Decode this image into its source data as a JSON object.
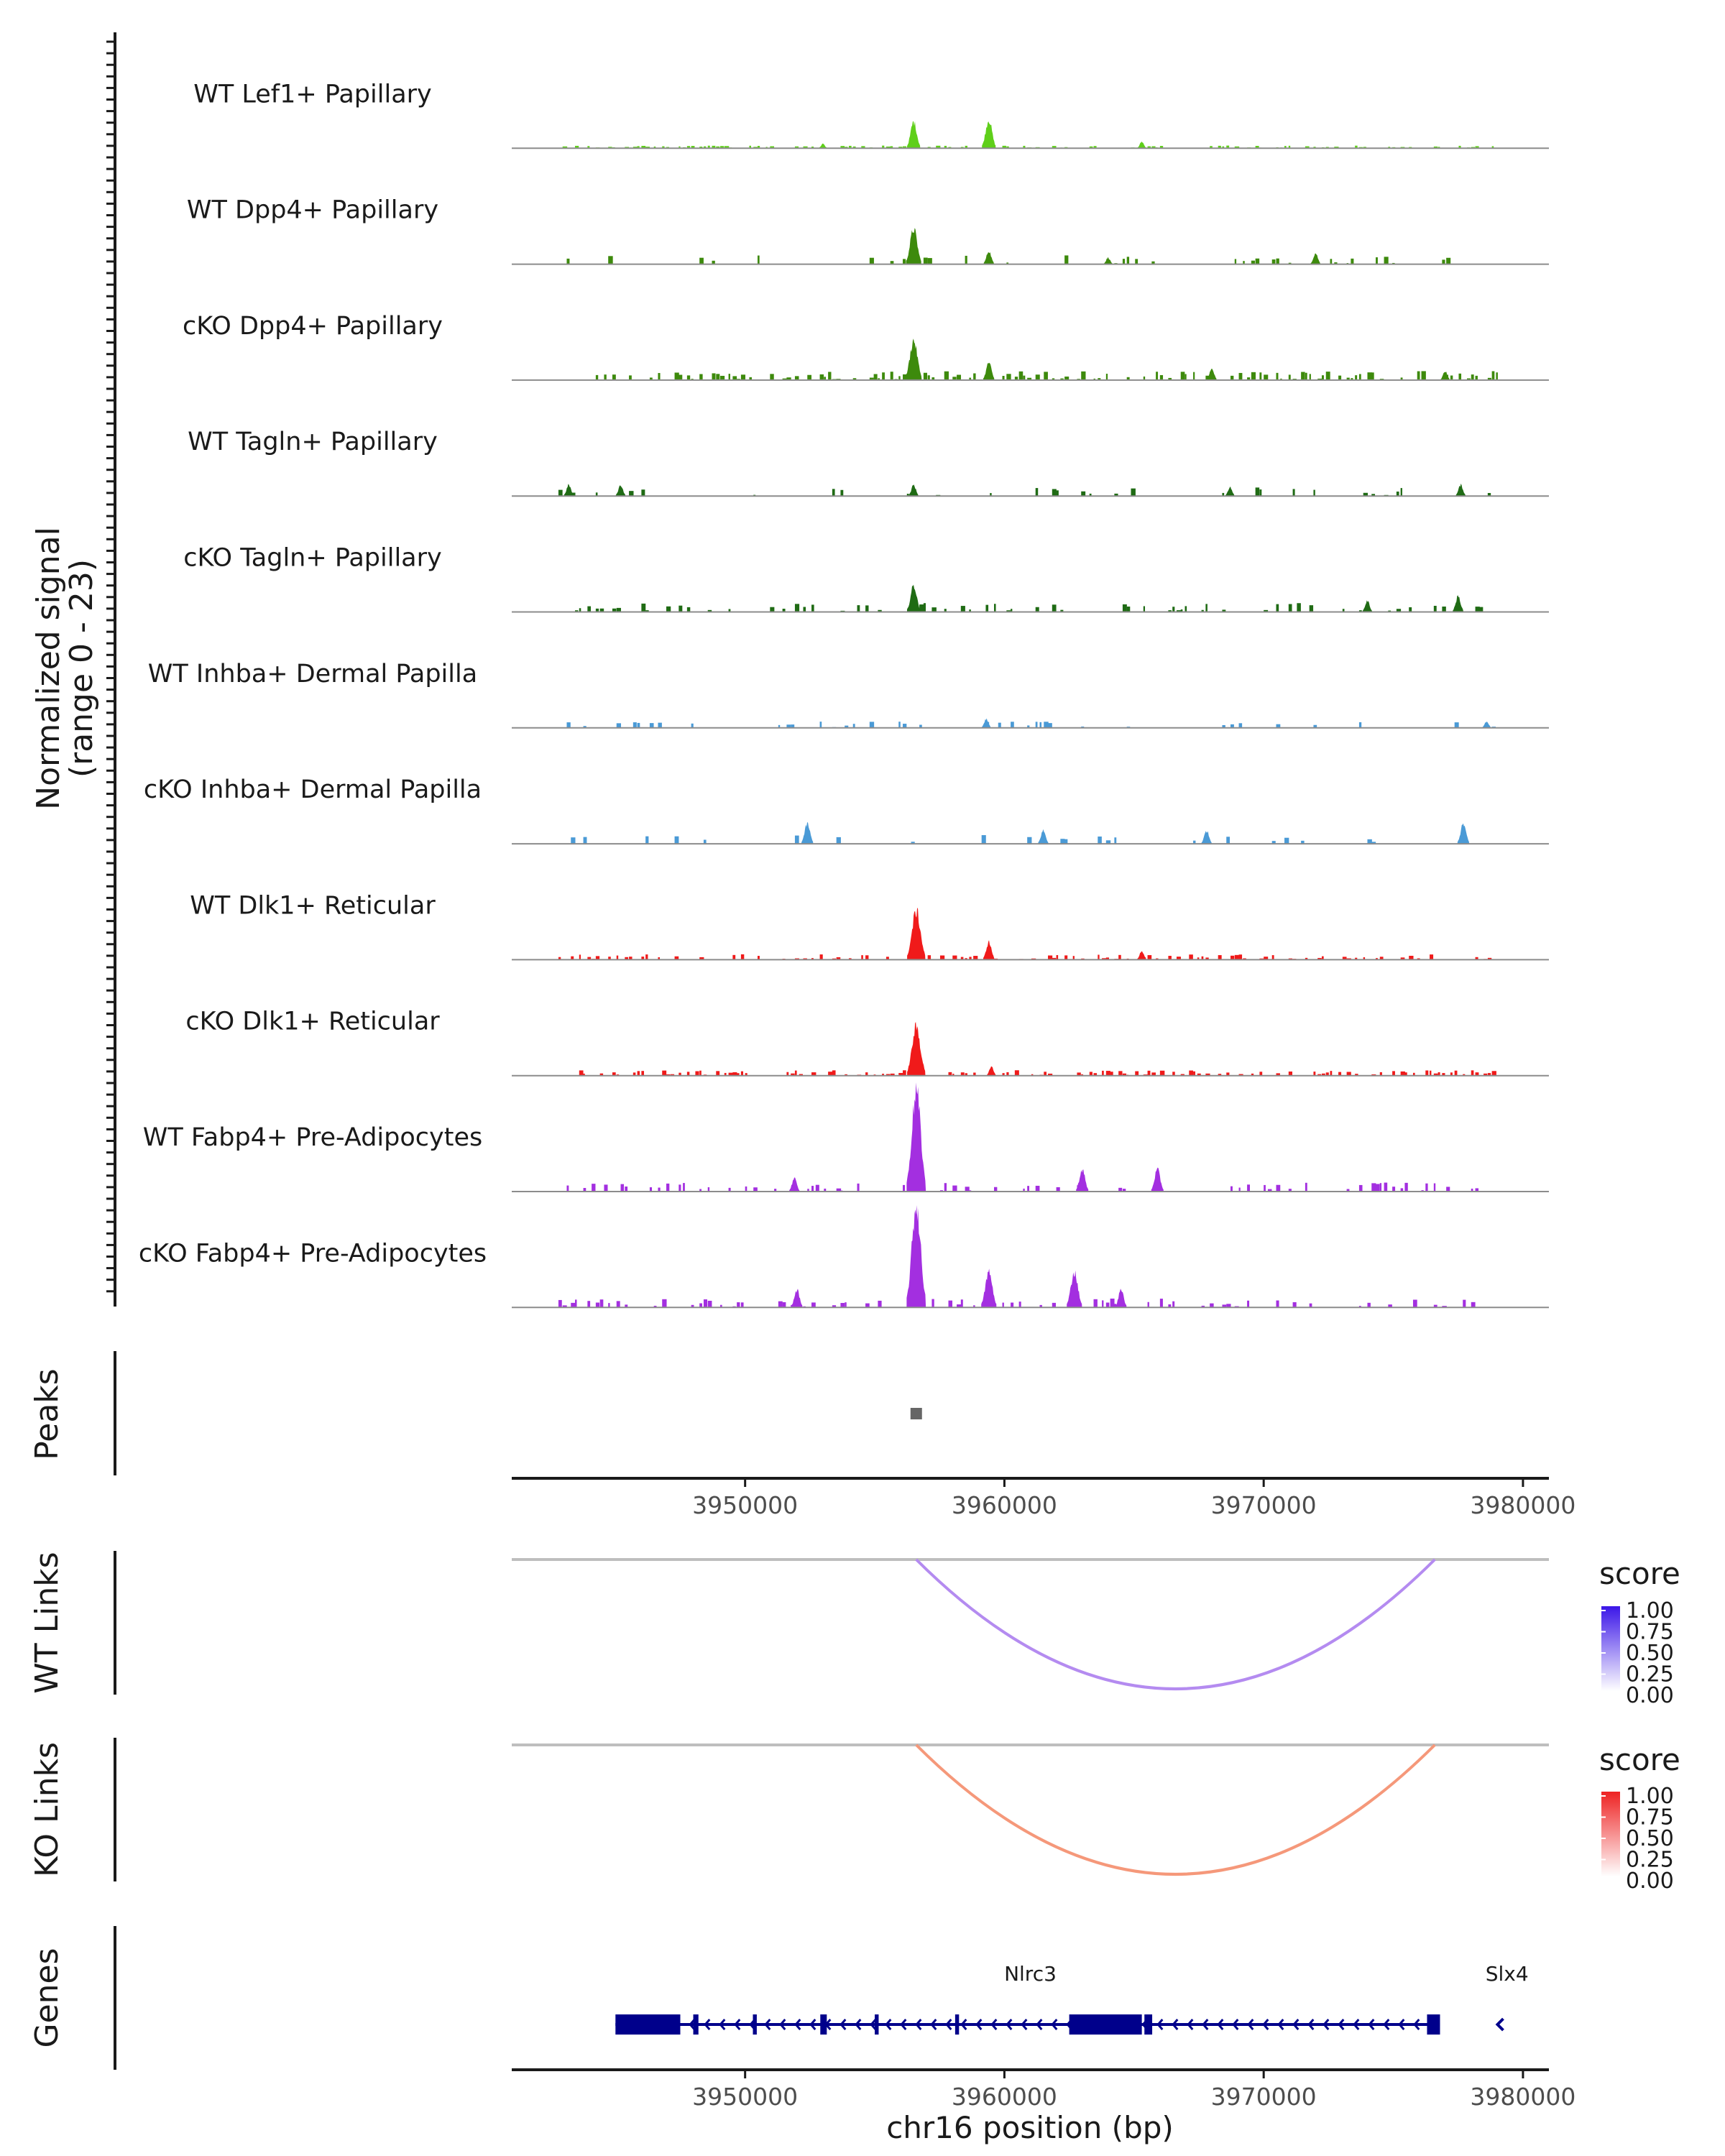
{
  "chart_data": {
    "type": "area",
    "chromosome": "chr16",
    "xlabel": "chr16 position (bp)",
    "xlim": [
      3941000,
      3981000
    ],
    "x_ticks": [
      3950000,
      3960000,
      3970000,
      3980000
    ],
    "x_tick_labels": [
      "3950000",
      "3960000",
      "3970000",
      "3980000"
    ],
    "coverage_ylabel_line1": "Normalized signal",
    "coverage_ylabel_line2": "(range 0 - 23)",
    "coverage_range": [
      0,
      23
    ],
    "coverage_tracks": [
      {
        "name": "WT Lef1+ Papillary",
        "color": "#5fcf1a",
        "density": 0.55,
        "scale": 0.3,
        "peaks": [
          [
            3956500,
            6
          ],
          [
            3959400,
            6.5
          ],
          [
            3965300,
            1.5
          ],
          [
            3953000,
            1
          ]
        ]
      },
      {
        "name": "WT Dpp4+ Papillary",
        "color": "#3d8a0c",
        "density": 0.15,
        "scale": 1.0,
        "peaks": [
          [
            3956500,
            8
          ],
          [
            3959400,
            3
          ],
          [
            3972000,
            2.5
          ],
          [
            3964000,
            1.5
          ]
        ]
      },
      {
        "name": "cKO Dpp4+ Papillary",
        "color": "#3d8a0c",
        "density": 0.5,
        "scale": 1.0,
        "peaks": [
          [
            3956500,
            9
          ],
          [
            3959400,
            4
          ],
          [
            3968000,
            2.5
          ],
          [
            3977000,
            2
          ]
        ]
      },
      {
        "name": "WT Tagln+ Papillary",
        "color": "#1f6b14",
        "density": 0.12,
        "scale": 1.0,
        "peaks": [
          [
            3943200,
            2.5
          ],
          [
            3945200,
            2.5
          ],
          [
            3956500,
            2.5
          ],
          [
            3977600,
            2.5
          ],
          [
            3968700,
            2
          ]
        ]
      },
      {
        "name": "cKO Tagln+ Papillary",
        "color": "#1f6b14",
        "density": 0.3,
        "scale": 1.0,
        "peaks": [
          [
            3956500,
            6
          ],
          [
            3977500,
            3.5
          ],
          [
            3974000,
            2.5
          ]
        ]
      },
      {
        "name": "WT Inhba+ Dermal Papilla",
        "color": "#4a9ad6",
        "density": 0.15,
        "scale": 0.7,
        "peaks": [
          [
            3959300,
            2
          ],
          [
            3978600,
            1.5
          ]
        ]
      },
      {
        "name": "cKO Inhba+ Dermal Papilla",
        "color": "#4a9ad6",
        "density": 0.1,
        "scale": 1.0,
        "peaks": [
          [
            3952400,
            4.5
          ],
          [
            3977700,
            4.5
          ],
          [
            3961500,
            3
          ],
          [
            3967800,
            3
          ]
        ]
      },
      {
        "name": "WT Dlk1+ Reticular",
        "color": "#f01a1a",
        "density": 0.35,
        "scale": 0.6,
        "peaks": [
          [
            3956600,
            11
          ],
          [
            3959400,
            4
          ],
          [
            3965300,
            2
          ]
        ]
      },
      {
        "name": "cKO Dlk1+ Reticular",
        "color": "#f01a1a",
        "density": 0.5,
        "scale": 0.6,
        "peaks": [
          [
            3956600,
            11
          ],
          [
            3959500,
            2
          ]
        ]
      },
      {
        "name": "WT Fabp4+ Pre-Adipocytes",
        "color": "#a32fe0",
        "density": 0.25,
        "scale": 1.0,
        "peaks": [
          [
            3956600,
            23
          ],
          [
            3963000,
            5
          ],
          [
            3965900,
            5
          ],
          [
            3951900,
            3
          ]
        ]
      },
      {
        "name": "cKO Fabp4+ Pre-Adipocytes",
        "color": "#a32fe0",
        "density": 0.3,
        "scale": 1.0,
        "peaks": [
          [
            3956600,
            23
          ],
          [
            3959400,
            8
          ],
          [
            3962700,
            8
          ],
          [
            3964500,
            4
          ],
          [
            3952000,
            4
          ]
        ]
      }
    ],
    "peaks_track": {
      "label": "Peaks",
      "regions": [
        [
          3956400,
          3956800
        ]
      ],
      "color": "#666666"
    },
    "link_tracks": [
      {
        "label": "WT Links",
        "start": 3956600,
        "end": 3976600,
        "score": 0.5,
        "line_color": "#b48bf0",
        "legend_title": "score",
        "legend_colors": [
          "#3b16e8",
          "#ffffff"
        ],
        "legend_labels": [
          "1.00",
          "0.75",
          "0.50",
          "0.25",
          "0.00"
        ]
      },
      {
        "label": "KO Links",
        "start": 3956600,
        "end": 3976600,
        "score": 0.5,
        "line_color": "#f5987a",
        "legend_title": "score",
        "legend_colors": [
          "#ee2222",
          "#ffffff"
        ],
        "legend_labels": [
          "1.00",
          "0.75",
          "0.50",
          "0.25",
          "0.00"
        ]
      }
    ],
    "genes_track": {
      "label": "Genes",
      "color": "#00008b",
      "genes": [
        {
          "name": "Nlrc3",
          "start": 3945000,
          "end": 3976800,
          "strand": "-",
          "exons": [
            [
              3945000,
              3947500
            ],
            [
              3948000,
              3948200
            ],
            [
              3950300,
              3950450
            ],
            [
              3952900,
              3953150
            ],
            [
              3955000,
              3955150
            ],
            [
              3958100,
              3958250
            ],
            [
              3962500,
              3965300
            ],
            [
              3965400,
              3965700
            ],
            [
              3976300,
              3976800
            ]
          ]
        },
        {
          "name": "Slx4",
          "start": 3978900,
          "end": 3979300,
          "strand": "-",
          "exons": []
        }
      ]
    }
  }
}
